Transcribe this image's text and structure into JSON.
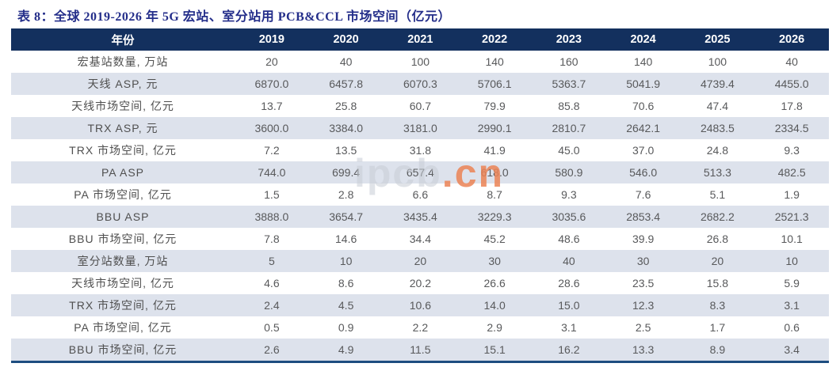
{
  "title": "表 8：全球 2019-2026 年 5G 宏站、室分站用 PCB&CCL 市场空间（亿元）",
  "watermark": {
    "gray_text": "ipcb",
    "orange_text": ".cn"
  },
  "colors": {
    "title_color": "#242e8a",
    "header_bg": "#13305e",
    "header_text": "#ffffff",
    "alt_row_bg": "#dde2ec",
    "body_text": "#58595b",
    "bottom_border": "#1d4d80",
    "watermark_orange": "#eb8255",
    "watermark_gray": "#c6ccd5"
  },
  "table": {
    "header_label": "年份",
    "years": [
      "2019",
      "2020",
      "2021",
      "2022",
      "2023",
      "2024",
      "2025",
      "2026"
    ],
    "rows": [
      {
        "label": "宏基站数量, 万站",
        "values": [
          "20",
          "40",
          "100",
          "140",
          "160",
          "140",
          "100",
          "40"
        ]
      },
      {
        "label": "天线 ASP, 元",
        "values": [
          "6870.0",
          "6457.8",
          "6070.3",
          "5706.1",
          "5363.7",
          "5041.9",
          "4739.4",
          "4455.0"
        ]
      },
      {
        "label": "天线市场空间, 亿元",
        "values": [
          "13.7",
          "25.8",
          "60.7",
          "79.9",
          "85.8",
          "70.6",
          "47.4",
          "17.8"
        ]
      },
      {
        "label": "TRX ASP, 元",
        "values": [
          "3600.0",
          "3384.0",
          "3181.0",
          "2990.1",
          "2810.7",
          "2642.1",
          "2483.5",
          "2334.5"
        ]
      },
      {
        "label": "TRX 市场空间, 亿元",
        "values": [
          "7.2",
          "13.5",
          "31.8",
          "41.9",
          "45.0",
          "37.0",
          "24.8",
          "9.3"
        ]
      },
      {
        "label": "PA ASP",
        "values": [
          "744.0",
          "699.4",
          "657.4",
          "618.0",
          "580.9",
          "546.0",
          "513.3",
          "482.5"
        ]
      },
      {
        "label": "PA 市场空间, 亿元",
        "values": [
          "1.5",
          "2.8",
          "6.6",
          "8.7",
          "9.3",
          "7.6",
          "5.1",
          "1.9"
        ]
      },
      {
        "label": "BBU ASP",
        "values": [
          "3888.0",
          "3654.7",
          "3435.4",
          "3229.3",
          "3035.6",
          "2853.4",
          "2682.2",
          "2521.3"
        ]
      },
      {
        "label": "BBU 市场空间, 亿元",
        "values": [
          "7.8",
          "14.6",
          "34.4",
          "45.2",
          "48.6",
          "39.9",
          "26.8",
          "10.1"
        ]
      },
      {
        "label": "室分站数量, 万站",
        "values": [
          "5",
          "10",
          "20",
          "30",
          "40",
          "30",
          "20",
          "10"
        ]
      },
      {
        "label": "天线市场空间, 亿元",
        "values": [
          "4.6",
          "8.6",
          "20.2",
          "26.6",
          "28.6",
          "23.5",
          "15.8",
          "5.9"
        ]
      },
      {
        "label": "TRX 市场空间, 亿元",
        "values": [
          "2.4",
          "4.5",
          "10.6",
          "14.0",
          "15.0",
          "12.3",
          "8.3",
          "3.1"
        ]
      },
      {
        "label": "PA 市场空间, 亿元",
        "values": [
          "0.5",
          "0.9",
          "2.2",
          "2.9",
          "3.1",
          "2.5",
          "1.7",
          "0.6"
        ]
      },
      {
        "label": "BBU 市场空间, 亿元",
        "values": [
          "2.6",
          "4.9",
          "11.5",
          "15.1",
          "16.2",
          "13.3",
          "8.9",
          "3.4"
        ]
      }
    ]
  }
}
